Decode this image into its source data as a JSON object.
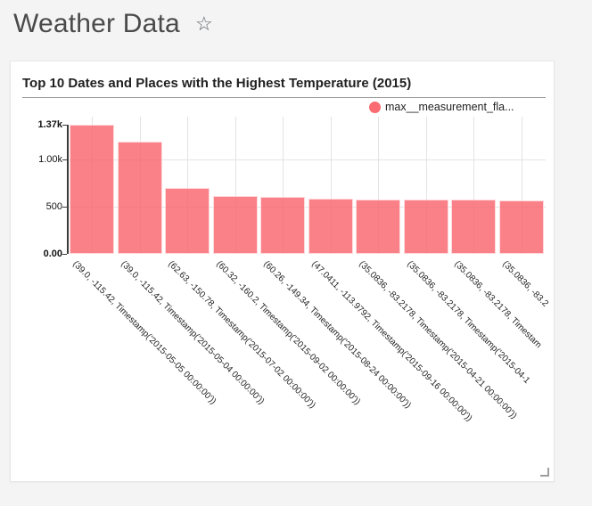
{
  "header": {
    "title": "Weather Data",
    "star_icon": "star-outline",
    "star_glyph": "☆"
  },
  "card": {
    "title": "Top 10 Dates and Places with the Highest Temperature (2015)",
    "legend": {
      "label": "max__measurement_fla...",
      "color": "#FB6B72"
    }
  },
  "chart_data": {
    "type": "bar",
    "title": "Top 10 Dates and Places with the Highest Temperature (2015)",
    "series": [
      {
        "name": "max__measurement_fla...",
        "values": [
          1370,
          1190,
          702,
          614,
          604,
          582,
          574,
          575,
          572,
          566
        ]
      }
    ],
    "categories": [
      "(39.0, -115.42, Timestamp('2015-05-05 00:00:00'))",
      "(39.0, -115.42, Timestamp('2015-05-04 00:00:00'))",
      "(62.63, -150.78, Timestamp('2015-07-02 00:00:00'))",
      "(60.32, -160.2, Timestamp('2015-09-02 00:00:00'))",
      "(60.26, -149.34, Timestamp('2015-08-24 00:00:00'))",
      "(47.0411, -113.9792, Timestamp('2015-09-16 00:00:00'))",
      "(35.0836, -83.2178, Timestamp('2015-04-21 00:00:00'))",
      "(35.0836, -83.2178, Timestamp('2015-04-1",
      "(35.0836, -83.2178, Timestam",
      "(35.0836, -83.2"
    ],
    "xlabel": "",
    "ylabel": "",
    "ylim": [
      0,
      1370
    ],
    "yticks": [
      {
        "label": "1.37k",
        "value": 1370,
        "bold": true
      },
      {
        "label": "1.00k",
        "value": 1000,
        "bold": false
      },
      {
        "label": "500",
        "value": 500,
        "bold": false
      },
      {
        "label": "0.00",
        "value": 0,
        "bold": true
      }
    ],
    "bar_color": "rgba(250,98,108,0.80)",
    "grid": true,
    "legend_position": "top-right",
    "x_tick_rotation_deg": 45
  }
}
